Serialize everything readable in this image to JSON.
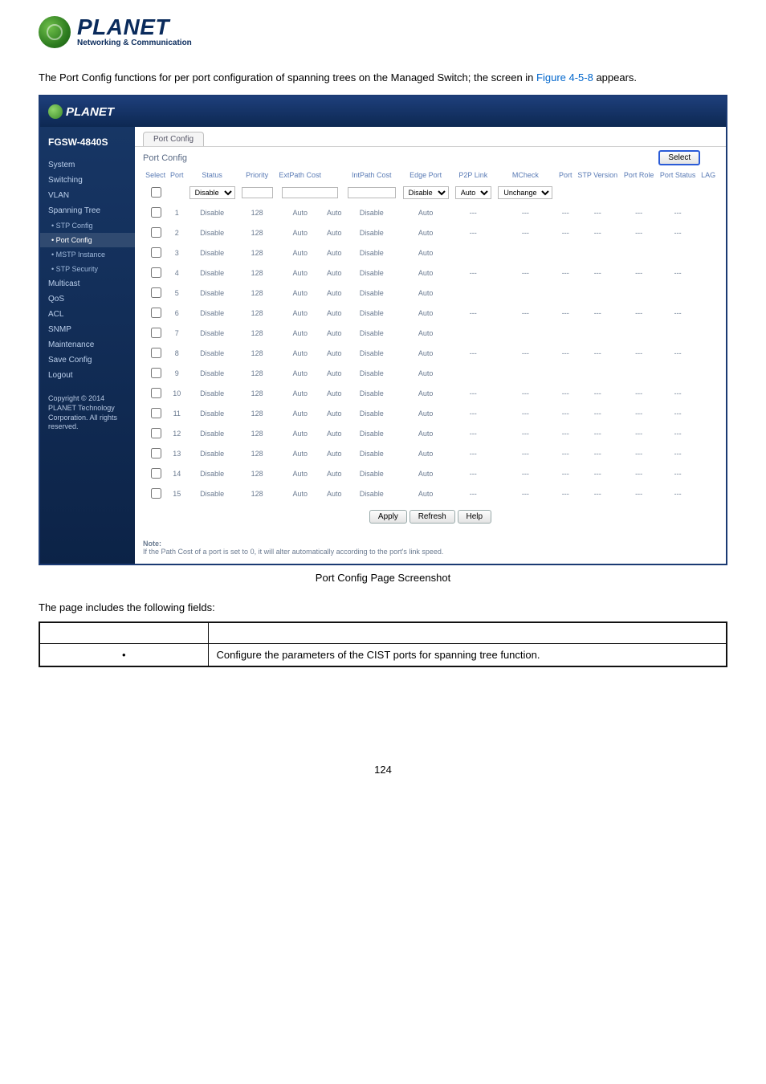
{
  "logo": {
    "brand": "PLANET",
    "tag": "Networking & Communication"
  },
  "intro": {
    "pre": "The Port Config functions for per port configuration of spanning trees on the Managed Switch; the screen in ",
    "figref": "Figure 4-5-8",
    "post": " appears."
  },
  "app": {
    "brand": "PLANET",
    "model": "FGSW-4840S",
    "nav": {
      "items": [
        {
          "label": "System"
        },
        {
          "label": "Switching"
        },
        {
          "label": "VLAN"
        },
        {
          "label": "Spanning Tree"
        }
      ],
      "subs": [
        {
          "label": "• STP Config"
        },
        {
          "label": "• Port Config"
        },
        {
          "label": "• MSTP Instance"
        },
        {
          "label": "• STP Security"
        }
      ],
      "items2": [
        {
          "label": "Multicast"
        },
        {
          "label": "QoS"
        },
        {
          "label": "ACL"
        },
        {
          "label": "SNMP"
        },
        {
          "label": "Maintenance"
        },
        {
          "label": "Save Config"
        },
        {
          "label": "Logout"
        }
      ]
    },
    "copyright": "Copyright © 2014 PLANET Technology Corporation. All rights reserved.",
    "tab": "Port Config",
    "panelTitle": "Port Config",
    "selectBtn": "Select",
    "columns": [
      "Select",
      "Port",
      "Status",
      "Priority",
      "ExtPath Cost",
      "",
      "IntPath Cost",
      "Edge Port",
      "P2P Link",
      "MCheck",
      "Port",
      "STP Version",
      "Port Role",
      "Port Status",
      "LAG"
    ],
    "filters": {
      "status": "Disable",
      "edge": "Disable",
      "p2p": "Auto",
      "mcheck": "Unchange"
    },
    "rows": [
      {
        "port": 1,
        "status": "Disable",
        "prio": 128,
        "ext": "Auto",
        "extu": "Auto",
        "intp": "Disable",
        "edge": "Auto",
        "p2p": "---",
        "mc": "---",
        "sp": "---",
        "ver": "---",
        "role": "---",
        "st": "---"
      },
      {
        "port": 2,
        "status": "Disable",
        "prio": 128,
        "ext": "Auto",
        "extu": "Auto",
        "intp": "Disable",
        "edge": "Auto",
        "p2p": "---",
        "mc": "---",
        "sp": "---",
        "ver": "---",
        "role": "---",
        "st": "---"
      },
      {
        "port": 3,
        "status": "Disable",
        "prio": 128,
        "ext": "Auto",
        "extu": "Auto",
        "intp": "Disable",
        "edge": "Auto",
        "p2p": "",
        "mc": "",
        "sp": "",
        "ver": "",
        "role": "",
        "st": ""
      },
      {
        "port": 4,
        "status": "Disable",
        "prio": 128,
        "ext": "Auto",
        "extu": "Auto",
        "intp": "Disable",
        "edge": "Auto",
        "p2p": "---",
        "mc": "---",
        "sp": "---",
        "ver": "---",
        "role": "---",
        "st": "---"
      },
      {
        "port": 5,
        "status": "Disable",
        "prio": 128,
        "ext": "Auto",
        "extu": "Auto",
        "intp": "Disable",
        "edge": "Auto",
        "p2p": "",
        "mc": "",
        "sp": "",
        "ver": "",
        "role": "",
        "st": ""
      },
      {
        "port": 6,
        "status": "Disable",
        "prio": 128,
        "ext": "Auto",
        "extu": "Auto",
        "intp": "Disable",
        "edge": "Auto",
        "p2p": "---",
        "mc": "---",
        "sp": "---",
        "ver": "---",
        "role": "---",
        "st": "---"
      },
      {
        "port": 7,
        "status": "Disable",
        "prio": 128,
        "ext": "Auto",
        "extu": "Auto",
        "intp": "Disable",
        "edge": "Auto",
        "p2p": "",
        "mc": "",
        "sp": "",
        "ver": "",
        "role": "",
        "st": ""
      },
      {
        "port": 8,
        "status": "Disable",
        "prio": 128,
        "ext": "Auto",
        "extu": "Auto",
        "intp": "Disable",
        "edge": "Auto",
        "p2p": "---",
        "mc": "---",
        "sp": "---",
        "ver": "---",
        "role": "---",
        "st": "---"
      },
      {
        "port": 9,
        "status": "Disable",
        "prio": 128,
        "ext": "Auto",
        "extu": "Auto",
        "intp": "Disable",
        "edge": "Auto",
        "p2p": "",
        "mc": "",
        "sp": "",
        "ver": "",
        "role": "",
        "st": ""
      },
      {
        "port": 10,
        "status": "Disable",
        "prio": 128,
        "ext": "Auto",
        "extu": "Auto",
        "intp": "Disable",
        "edge": "Auto",
        "p2p": "---",
        "mc": "---",
        "sp": "---",
        "ver": "---",
        "role": "---",
        "st": "---"
      },
      {
        "port": 11,
        "status": "Disable",
        "prio": 128,
        "ext": "Auto",
        "extu": "Auto",
        "intp": "Disable",
        "edge": "Auto",
        "p2p": "---",
        "mc": "---",
        "sp": "---",
        "ver": "---",
        "role": "---",
        "st": "---"
      },
      {
        "port": 12,
        "status": "Disable",
        "prio": 128,
        "ext": "Auto",
        "extu": "Auto",
        "intp": "Disable",
        "edge": "Auto",
        "p2p": "---",
        "mc": "---",
        "sp": "---",
        "ver": "---",
        "role": "---",
        "st": "---"
      },
      {
        "port": 13,
        "status": "Disable",
        "prio": 128,
        "ext": "Auto",
        "extu": "Auto",
        "intp": "Disable",
        "edge": "Auto",
        "p2p": "---",
        "mc": "---",
        "sp": "---",
        "ver": "---",
        "role": "---",
        "st": "---"
      },
      {
        "port": 14,
        "status": "Disable",
        "prio": 128,
        "ext": "Auto",
        "extu": "Auto",
        "intp": "Disable",
        "edge": "Auto",
        "p2p": "---",
        "mc": "---",
        "sp": "---",
        "ver": "---",
        "role": "---",
        "st": "---"
      },
      {
        "port": 15,
        "status": "Disable",
        "prio": 128,
        "ext": "Auto",
        "extu": "Auto",
        "intp": "Disable",
        "edge": "Auto",
        "p2p": "---",
        "mc": "---",
        "sp": "---",
        "ver": "---",
        "role": "---",
        "st": "---"
      }
    ],
    "buttons": {
      "apply": "Apply",
      "refresh": "Refresh",
      "help": "Help"
    },
    "noteLabel": "Note:",
    "noteText": "If the Path Cost of a port is set to 0, it will alter automatically according to the port's link speed."
  },
  "caption": "Port Config Page Screenshot",
  "following": "The page includes the following fields:",
  "fieldsRow": {
    "object": "",
    "desc": "Configure the parameters of the CIST ports for spanning tree function."
  },
  "pagenum": "124"
}
